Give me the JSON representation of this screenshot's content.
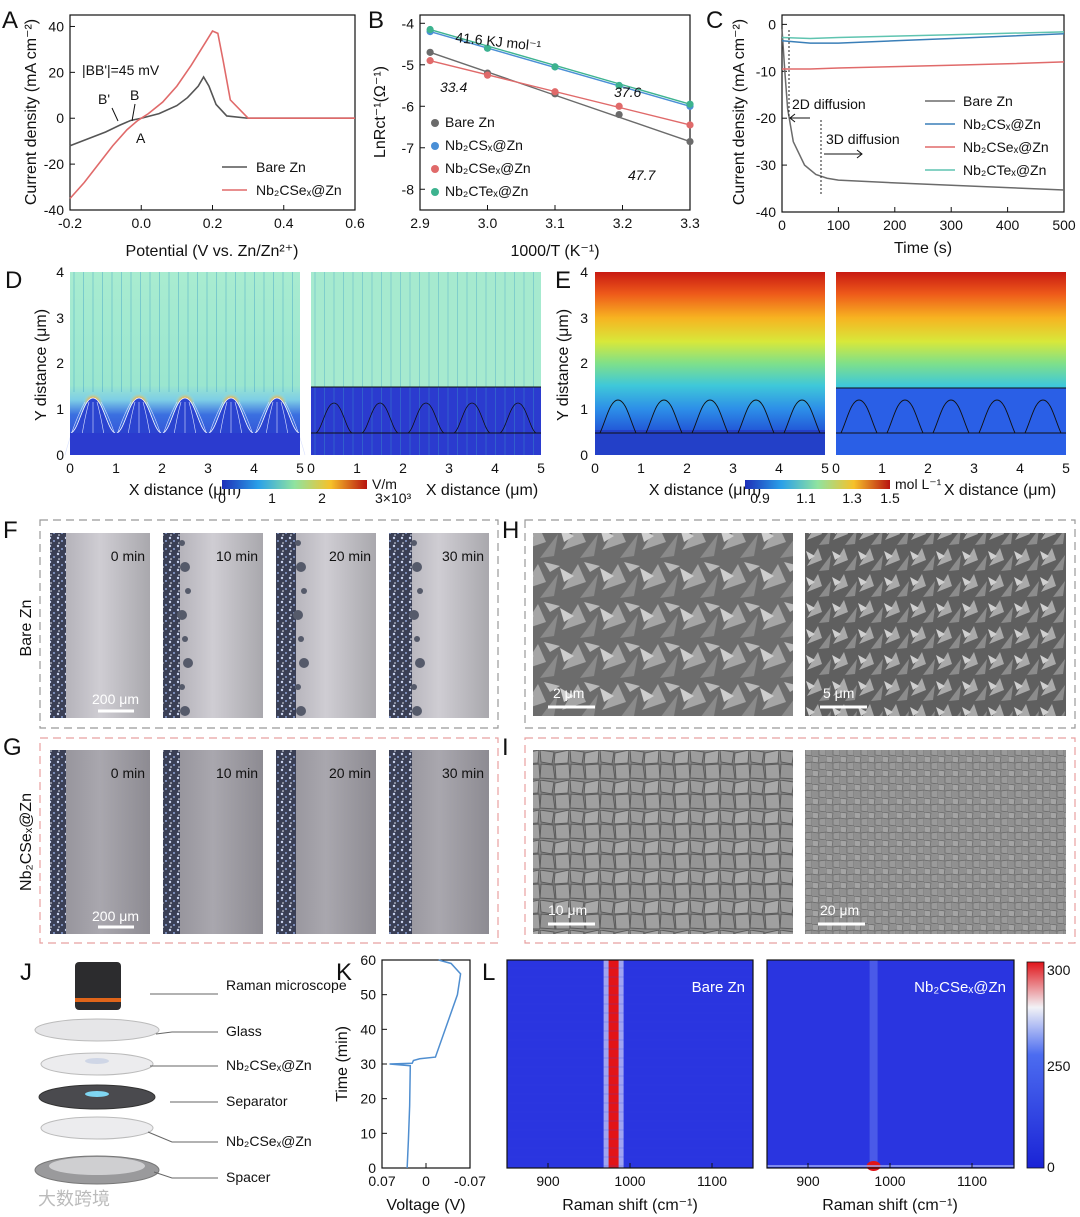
{
  "panels": {
    "A": "A",
    "B": "B",
    "C": "C",
    "D": "D",
    "E": "E",
    "F": "F",
    "G": "G",
    "H": "H",
    "I": "I",
    "J": "J",
    "K": "K",
    "L": "L"
  },
  "colors": {
    "bare": "#555555",
    "se": "#e06a6a",
    "s": "#4a8fd6",
    "te": "#3db38f",
    "cS": "#3a7fb8",
    "cTe": "#5fc4b0"
  },
  "chart_data": [
    {
      "id": "A",
      "type": "line",
      "xlabel": "Potential (V vs. Zn/Zn²⁺)",
      "ylabel": "Current density (mA cm⁻²)",
      "xlim": [
        -0.2,
        0.6
      ],
      "ylim": [
        -40,
        45
      ],
      "xticks": [
        "-0.2",
        "0.0",
        "0.2",
        "0.4",
        "0.6"
      ],
      "yticks": [
        "-40",
        "-20",
        "0",
        "20",
        "40"
      ],
      "annotations": {
        "bb": "|BB'|=45 mV",
        "bprime": "B'",
        "b": "B",
        "a": "A"
      },
      "legend": [
        "Bare Zn",
        "Nb₂CSeₓ@Zn"
      ],
      "series": [
        {
          "name": "Bare Zn",
          "x": [
            -0.2,
            -0.15,
            -0.1,
            -0.06,
            -0.03,
            0.0,
            0.05,
            0.1,
            0.13,
            0.16,
            0.175,
            0.19,
            0.21,
            0.24,
            0.3,
            0.6
          ],
          "y": [
            -12,
            -9,
            -6,
            -3,
            -1,
            0,
            2,
            5.5,
            9,
            14,
            18,
            14,
            6,
            1,
            0,
            0
          ]
        },
        {
          "name": "Nb₂CSeₓ@Zn",
          "x": [
            -0.2,
            -0.16,
            -0.12,
            -0.08,
            -0.04,
            -0.01,
            0.02,
            0.06,
            0.1,
            0.14,
            0.18,
            0.2,
            0.215,
            0.23,
            0.25,
            0.3,
            0.6
          ],
          "y": [
            -35,
            -28,
            -20,
            -12,
            -5,
            -1,
            2,
            7,
            14,
            23,
            33,
            38,
            37,
            25,
            8,
            0,
            0
          ]
        }
      ]
    },
    {
      "id": "B",
      "type": "scatter",
      "xlabel": "1000/T (K⁻¹)",
      "ylabel": "LnRct⁻¹(Ω⁻¹)",
      "xlim": [
        2.9,
        3.3
      ],
      "ylim": [
        -8.5,
        -3.8
      ],
      "xticks": [
        "2.9",
        "3.0",
        "3.1",
        "3.2",
        "3.3"
      ],
      "yticks": [
        "-4",
        "-5",
        "-6",
        "-7",
        "-8"
      ],
      "x": [
        2.915,
        3.0,
        3.1,
        3.195,
        3.3
      ],
      "annotations": {
        "e1": "41.6 KJ mol⁻¹",
        "e2": "33.4",
        "e3": "37.6",
        "e4": "47.7"
      },
      "series": [
        {
          "name": "Bare Zn",
          "y": [
            -4.7,
            -5.2,
            -5.7,
            -6.2,
            -6.85
          ]
        },
        {
          "name": "Nb₂CSₓ@Zn",
          "y": [
            -4.2,
            -4.6,
            -5.05,
            -5.5,
            -6.0
          ]
        },
        {
          "name": "Nb₂CSeₓ@Zn",
          "y": [
            -4.9,
            -5.25,
            -5.65,
            -6.0,
            -6.45
          ]
        },
        {
          "name": "Nb₂CTeₓ@Zn",
          "y": [
            -4.15,
            -4.6,
            -5.05,
            -5.5,
            -5.95
          ]
        }
      ]
    },
    {
      "id": "C",
      "type": "line",
      "xlabel": "Time (s)",
      "ylabel": "Current density (mA cm⁻²)",
      "xlim": [
        0,
        500
      ],
      "ylim": [
        -40,
        2
      ],
      "xticks": [
        "0",
        "100",
        "200",
        "300",
        "400",
        "500"
      ],
      "yticks": [
        "0",
        "-10",
        "-20",
        "-30",
        "-40"
      ],
      "annotations": {
        "d2": "2D diffusion",
        "d3": "3D diffusion"
      },
      "series": [
        {
          "name": "Bare Zn",
          "x": [
            0,
            5,
            10,
            20,
            40,
            60,
            80,
            100,
            200,
            300,
            400,
            500
          ],
          "y": [
            -1,
            -10,
            -18,
            -25,
            -30,
            -32,
            -32.8,
            -33.2,
            -33.8,
            -34.3,
            -34.8,
            -35.3
          ]
        },
        {
          "name": "Nb₂CSₓ@Zn",
          "x": [
            0,
            50,
            100,
            200,
            300,
            400,
            500
          ],
          "y": [
            -3.5,
            -4,
            -4,
            -3.5,
            -3,
            -2.5,
            -2
          ]
        },
        {
          "name": "Nb₂CSeₓ@Zn",
          "x": [
            0,
            50,
            100,
            200,
            300,
            400,
            500
          ],
          "y": [
            -9.5,
            -9.5,
            -9.3,
            -9,
            -8.7,
            -8.4,
            -8
          ]
        },
        {
          "name": "Nb₂CTeₓ@Zn",
          "x": [
            0,
            50,
            100,
            200,
            300,
            400,
            500
          ],
          "y": [
            -2.8,
            -3,
            -2.8,
            -2.5,
            -2.2,
            -1.9,
            -1.6
          ]
        }
      ]
    },
    {
      "id": "K",
      "type": "line",
      "xlabel": "Voltage (V)",
      "ylabel": "Time (min)",
      "xlim": [
        0.07,
        -0.07
      ],
      "ylim": [
        0,
        60
      ],
      "xticks": [
        "0.07",
        "0",
        "-0.07"
      ],
      "yticks": [
        "0",
        "10",
        "20",
        "30",
        "40",
        "50",
        "60"
      ],
      "series": [
        {
          "name": "Voltage",
          "x": [
            0.03,
            0.028,
            0.026,
            0.025,
            0.058,
            0.022,
            0.02,
            0.01,
            -0.015,
            -0.05,
            -0.055,
            -0.04,
            -0.02
          ],
          "y": [
            0,
            8,
            18,
            29.5,
            30,
            30.2,
            31,
            31.5,
            32,
            50,
            56,
            59,
            60
          ]
        }
      ]
    },
    {
      "id": "L",
      "type": "heatmap",
      "xlabel": "Raman shift (cm⁻¹)",
      "xlim": [
        850,
        1150
      ],
      "xticks": [
        "900",
        "1000",
        "1100"
      ],
      "colorbar": {
        "min": 0,
        "max": 300,
        "ticks": [
          "300",
          "250",
          "0"
        ]
      },
      "maps": [
        {
          "title": "Bare Zn",
          "peak_x": 980
        },
        {
          "title": "Nb₂CSeₓ@Zn",
          "peak_x": 980
        }
      ]
    }
  ],
  "d": {
    "xlabel": "X distance (μm)",
    "ylabel": "Y distance (μm)",
    "xticks": [
      "0",
      "1",
      "2",
      "3",
      "4",
      "5"
    ],
    "yticks": [
      "0",
      "1",
      "2",
      "3",
      "4"
    ],
    "colorbar": {
      "unit": "V/m",
      "ticks": [
        "0",
        "1",
        "2",
        "3×10³"
      ]
    }
  },
  "e": {
    "xlabel": "X distance (μm)",
    "ylabel": "Y distance (μm)",
    "xticks": [
      "0",
      "1",
      "2",
      "3",
      "4",
      "5"
    ],
    "yticks": [
      "0",
      "1",
      "2",
      "3",
      "4"
    ],
    "colorbar": {
      "unit": "mol L⁻¹",
      "ticks": [
        "0.9",
        "1.1",
        "1.3",
        "1.5"
      ]
    }
  },
  "micro": {
    "rowF": "Bare Zn",
    "rowG": "Nb₂CSeₓ@Zn",
    "times": [
      "0 min",
      "10 min",
      "20 min",
      "30 min"
    ],
    "scaleF": "200 μm",
    "scaleG": "200 μm",
    "scaleH1": "2 μm",
    "scaleH2": "5 μm",
    "scaleI1": "10 μm",
    "scaleI2": "20 μm"
  },
  "j": {
    "labels": [
      "Raman\nmicroscope",
      "Glass",
      "Nb₂CSeₓ@Zn",
      "Separator",
      "Nb₂CSeₓ@Zn",
      "Spacer"
    ]
  },
  "watermark": "大数跨境"
}
